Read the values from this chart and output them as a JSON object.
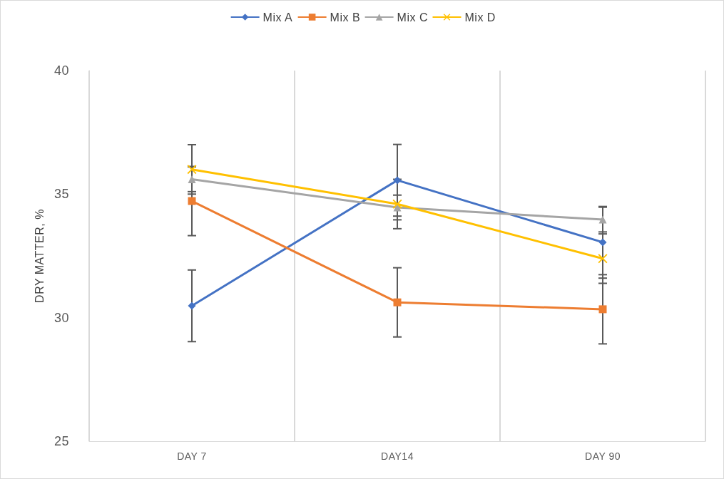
{
  "chart_data": {
    "type": "line",
    "ylabel": "DRY MATTER, %",
    "categories": [
      "DAY 7",
      "DAY14",
      "DAY 90"
    ],
    "series": [
      {
        "name": "Mix A",
        "color": "#4472c4",
        "marker": "diamond",
        "values": [
          30.48,
          35.56,
          33.05
        ],
        "errors": [
          1.45,
          1.45,
          1.45
        ]
      },
      {
        "name": "Mix B",
        "color": "#ed7d31",
        "marker": "square",
        "values": [
          34.72,
          30.62,
          30.34
        ],
        "errors": [
          1.4,
          1.4,
          1.4
        ]
      },
      {
        "name": "Mix C",
        "color": "#a5a5a5",
        "marker": "triangle",
        "values": [
          35.6,
          34.46,
          33.97
        ],
        "errors": [
          0.5,
          0.5,
          0.5
        ]
      },
      {
        "name": "Mix D",
        "color": "#ffc000",
        "marker": "cross",
        "values": [
          36.0,
          34.6,
          32.39
        ],
        "errors": [
          1.0,
          1.0,
          1.0
        ]
      }
    ],
    "ylim": [
      25,
      40
    ],
    "yticks": [
      25,
      30,
      35,
      40
    ],
    "grid": "x",
    "legend": "top"
  }
}
